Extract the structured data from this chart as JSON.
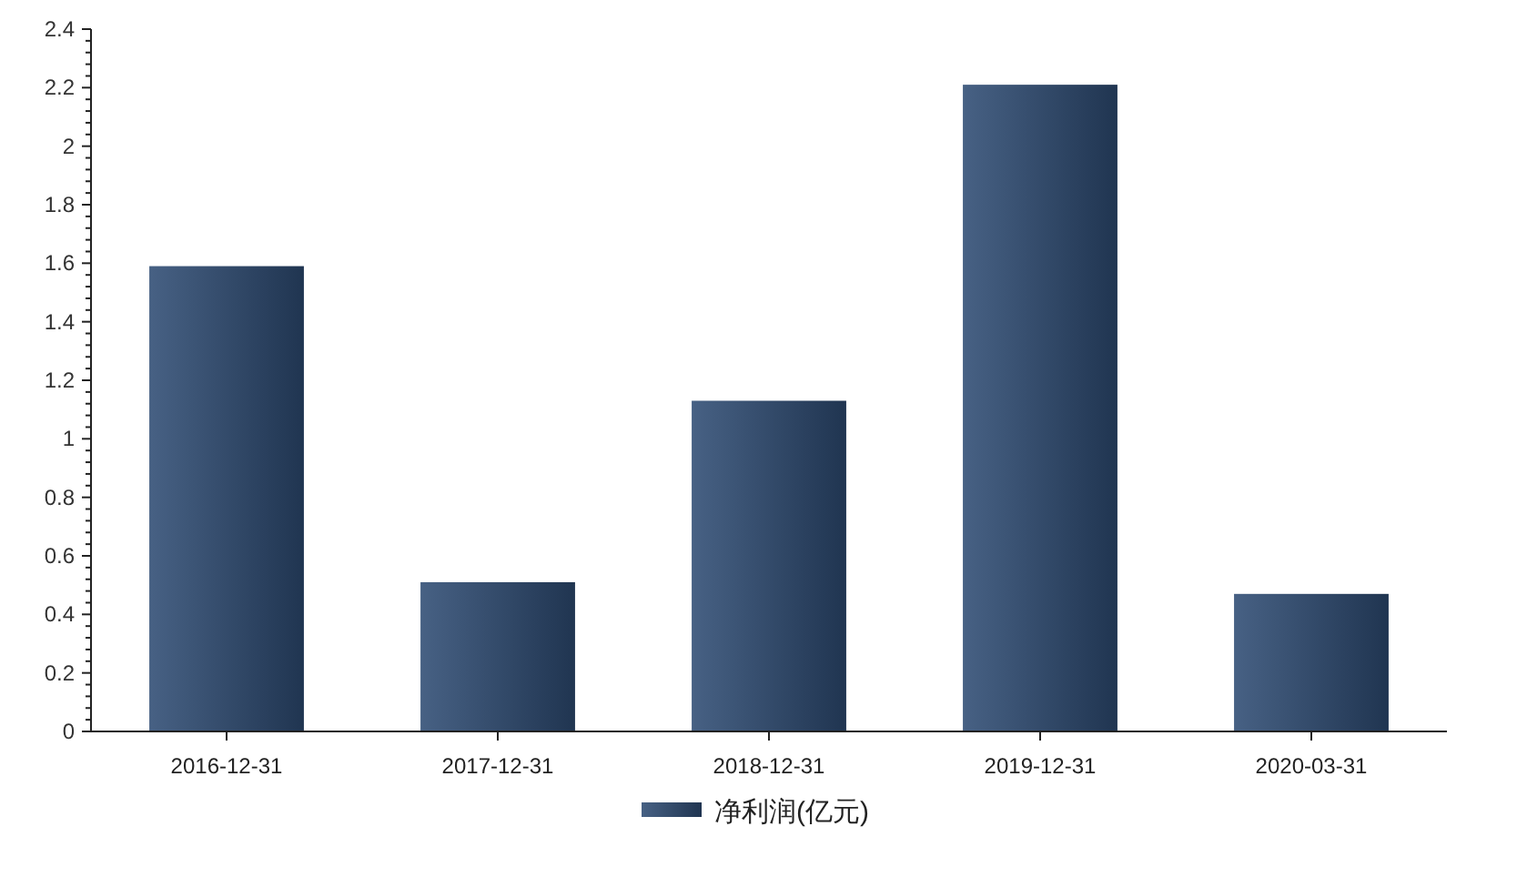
{
  "chart_data": {
    "type": "bar",
    "categories": [
      "2016-12-31",
      "2017-12-31",
      "2018-12-31",
      "2019-12-31",
      "2020-03-31"
    ],
    "series": [
      {
        "name": "净利润(亿元)",
        "color": "#2e4b73",
        "values": [
          1.59,
          0.51,
          1.13,
          2.21,
          0.47
        ]
      }
    ],
    "ylim": [
      0,
      2.4
    ],
    "yticks": [
      0,
      0.2,
      0.4,
      0.6,
      0.8,
      1,
      1.2,
      1.4,
      1.6,
      1.8,
      2,
      2.2,
      2.4
    ],
    "legend": "bottom",
    "grid": false
  }
}
